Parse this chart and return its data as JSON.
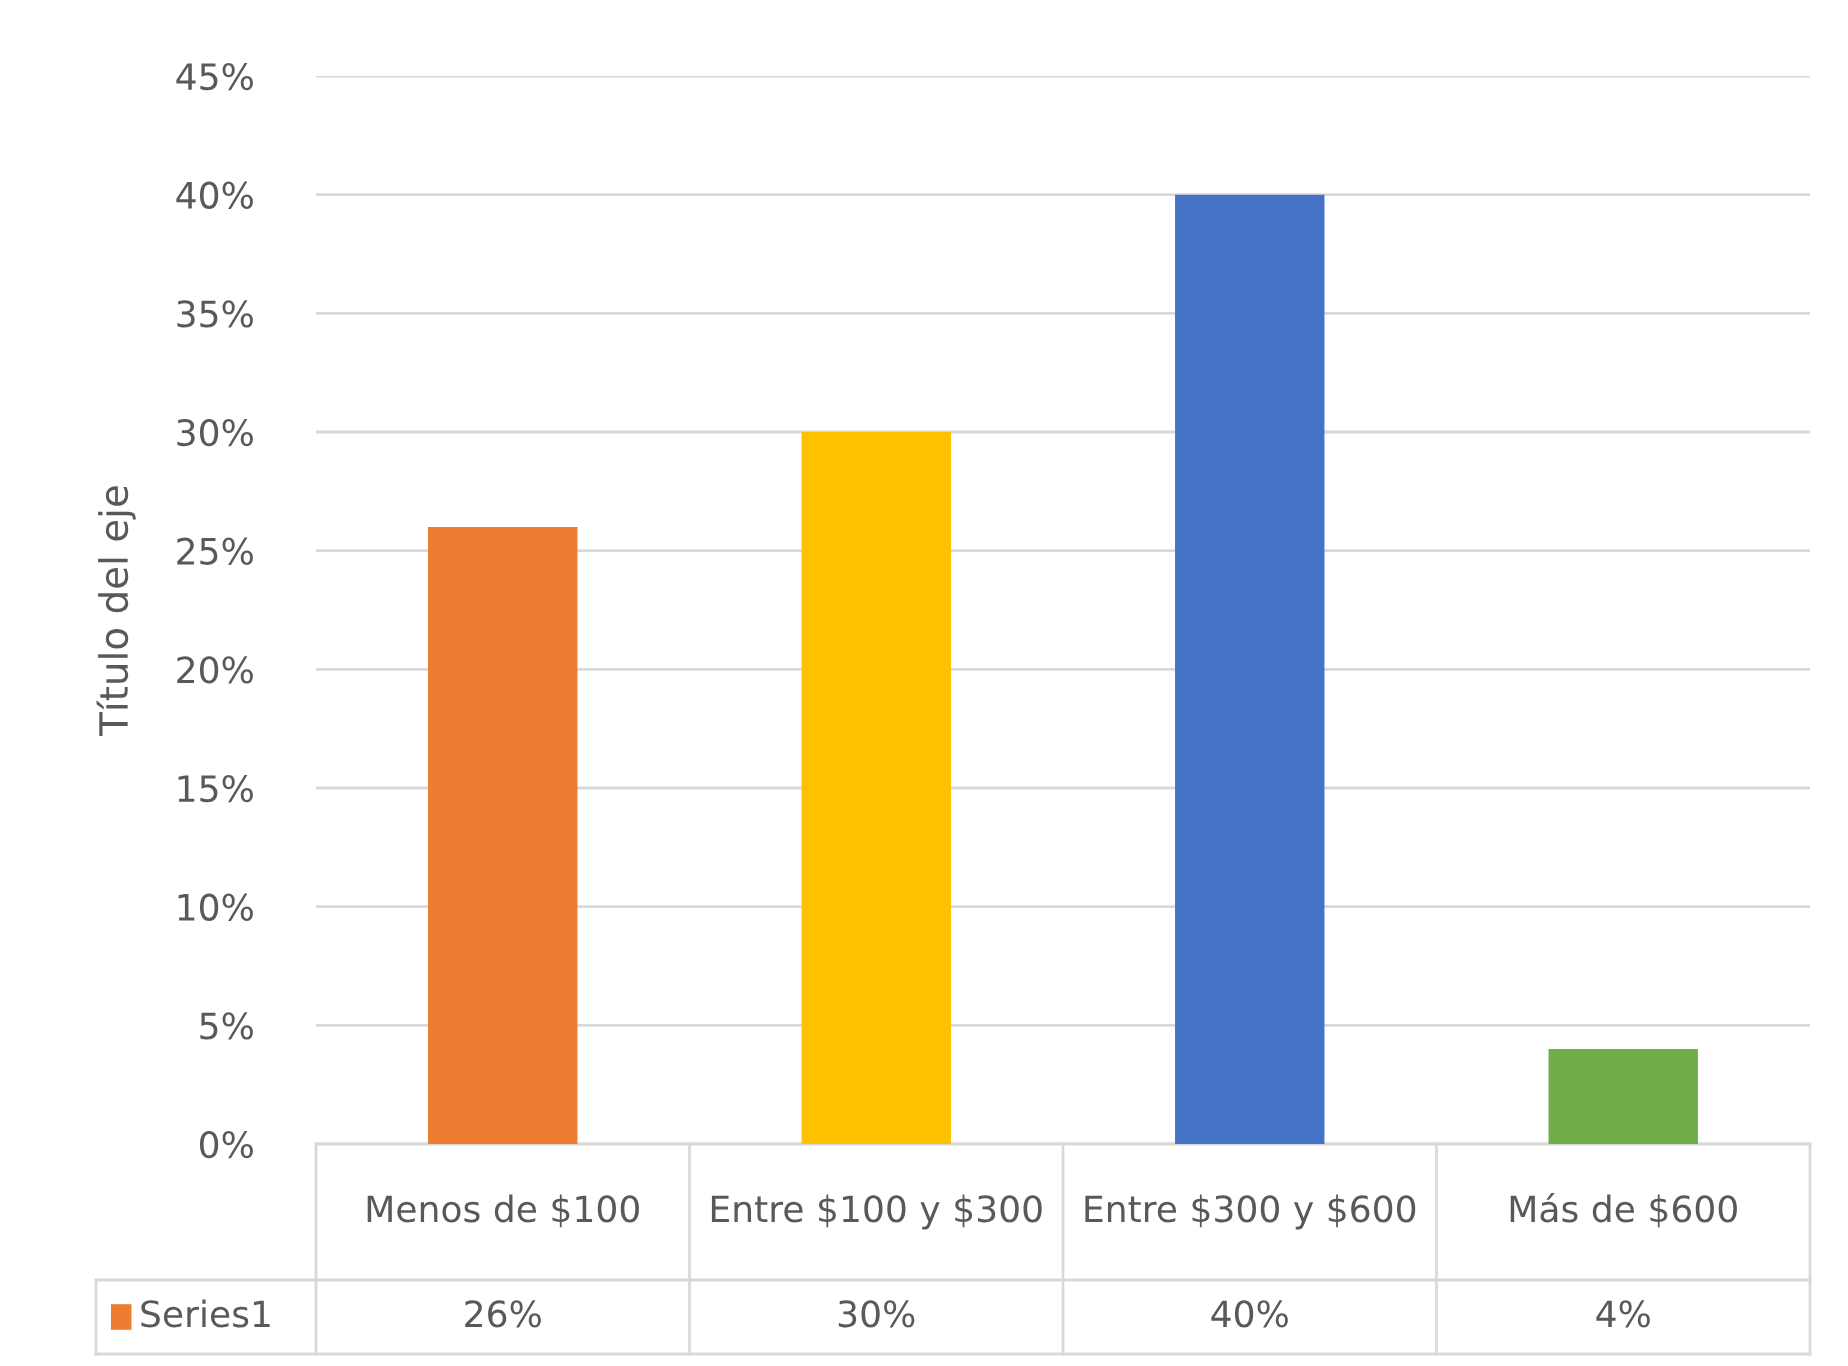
{
  "chart_data": {
    "type": "bar",
    "ylabel": "Título del eje",
    "categories": [
      "Menos de $100",
      "Entre $100 y $300",
      "Entre $300 y $600",
      "Más de $600"
    ],
    "series": [
      {
        "name": "Series1",
        "color": "#ed7d31",
        "colors": [
          "#ed7d31",
          "#ffc000",
          "#4472c4",
          "#70ad47"
        ],
        "values": [
          26,
          30,
          40,
          4
        ],
        "value_labels": [
          "26%",
          "30%",
          "40%",
          "4%"
        ]
      }
    ],
    "ylim": [
      0,
      45
    ],
    "yticks": [
      {
        "value": 0,
        "label": "0%"
      },
      {
        "value": 5,
        "label": "5%"
      },
      {
        "value": 10,
        "label": "10%"
      },
      {
        "value": 15,
        "label": "15%"
      },
      {
        "value": 20,
        "label": "20%"
      },
      {
        "value": 25,
        "label": "25%"
      },
      {
        "value": 30,
        "label": "30%"
      },
      {
        "value": 35,
        "label": "35%"
      },
      {
        "value": 40,
        "label": "40%"
      },
      {
        "value": 45,
        "label": "45%"
      }
    ],
    "grid": "y"
  }
}
